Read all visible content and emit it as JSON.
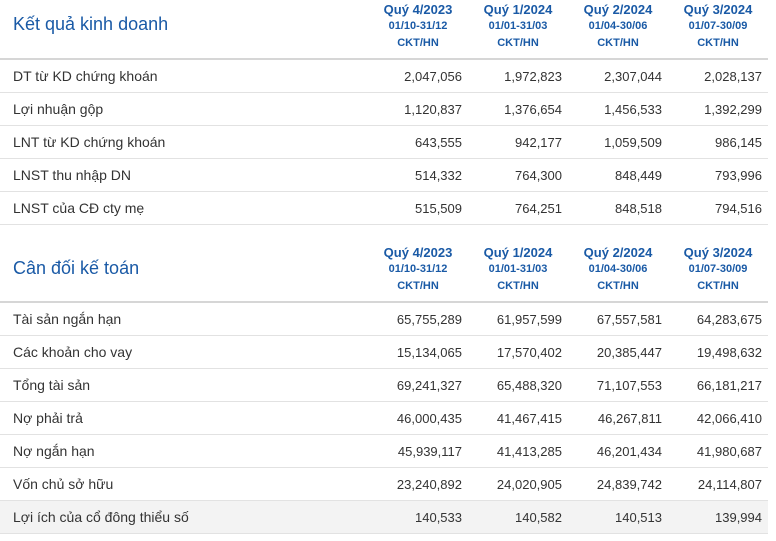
{
  "income": {
    "title": "Kết quả kinh doanh",
    "columns": [
      {
        "quarter": "Quý 4/2023",
        "range": "01/10-31/12",
        "type": "CKT/HN"
      },
      {
        "quarter": "Quý 1/2024",
        "range": "01/01-31/03",
        "type": "CKT/HN"
      },
      {
        "quarter": "Quý 2/2024",
        "range": "01/04-30/06",
        "type": "CKT/HN"
      },
      {
        "quarter": "Quý 3/2024",
        "range": "01/07-30/09",
        "type": "CKT/HN"
      }
    ],
    "rows": [
      {
        "label": "DT từ KD chứng khoán",
        "values": [
          "2,047,056",
          "1,972,823",
          "2,307,044",
          "2,028,137"
        ]
      },
      {
        "label": "Lợi nhuận gộp",
        "values": [
          "1,120,837",
          "1,376,654",
          "1,456,533",
          "1,392,299"
        ]
      },
      {
        "label": "LNT từ KD chứng khoán",
        "values": [
          "643,555",
          "942,177",
          "1,059,509",
          "986,145"
        ]
      },
      {
        "label": "LNST thu nhập DN",
        "values": [
          "514,332",
          "764,300",
          "848,449",
          "793,996"
        ]
      },
      {
        "label": "LNST của CĐ cty mẹ",
        "values": [
          "515,509",
          "764,251",
          "848,518",
          "794,516"
        ]
      }
    ]
  },
  "balance": {
    "title": "Cân đối kế toán",
    "columns": [
      {
        "quarter": "Quý 4/2023",
        "range": "01/10-31/12",
        "type": "CKT/HN"
      },
      {
        "quarter": "Quý 1/2024",
        "range": "01/01-31/03",
        "type": "CKT/HN"
      },
      {
        "quarter": "Quý 2/2024",
        "range": "01/04-30/06",
        "type": "CKT/HN"
      },
      {
        "quarter": "Quý 3/2024",
        "range": "01/07-30/09",
        "type": "CKT/HN"
      }
    ],
    "rows": [
      {
        "label": "Tài sản ngắn hạn",
        "values": [
          "65,755,289",
          "61,957,599",
          "67,557,581",
          "64,283,675"
        ]
      },
      {
        "label": "Các khoản cho vay",
        "values": [
          "15,134,065",
          "17,570,402",
          "20,385,447",
          "19,498,632"
        ]
      },
      {
        "label": "Tổng tài sản",
        "values": [
          "69,241,327",
          "65,488,320",
          "71,107,553",
          "66,181,217"
        ]
      },
      {
        "label": "Nợ phải trả",
        "values": [
          "46,000,435",
          "41,467,415",
          "46,267,811",
          "42,066,410"
        ]
      },
      {
        "label": "Nợ ngắn hạn",
        "values": [
          "45,939,117",
          "41,413,285",
          "46,201,434",
          "41,980,687"
        ]
      },
      {
        "label": "Vốn chủ sở hữu",
        "values": [
          "23,240,892",
          "24,020,905",
          "24,839,742",
          "24,114,807"
        ]
      },
      {
        "label": "Lợi ích của cổ đông thiểu số",
        "values": [
          "140,533",
          "140,582",
          "140,513",
          "139,994"
        ]
      }
    ]
  }
}
